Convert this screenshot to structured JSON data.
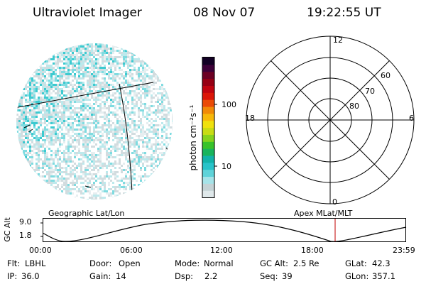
{
  "header": {
    "instrument": "Ultraviolet Imager",
    "date": "08 Nov 07",
    "time": "19:22:55 UT"
  },
  "left_panel": {
    "caption": "Geographic Lat/Lon"
  },
  "right_panel": {
    "caption": "Apex MLat/MLT",
    "mlt_labels": [
      "12",
      "18",
      "6",
      "0"
    ],
    "mlat_labels": [
      "60",
      "70",
      "80"
    ]
  },
  "colorbar": {
    "unit_label": "photon cm⁻²s⁻¹",
    "tick_labels": [
      "100",
      "10"
    ],
    "colors": [
      "#dfe8ea",
      "#c4d2d5",
      "#a6e3e8",
      "#5fd3d9",
      "#28c3c9",
      "#12b3a9",
      "#19b45c",
      "#38c22a",
      "#86d31d",
      "#c8dc14",
      "#efe10e",
      "#f7b80a",
      "#f18a08",
      "#ea4b07",
      "#db1608",
      "#c00410",
      "#960014",
      "#6c0024",
      "#3d0038",
      "#120024"
    ]
  },
  "timeline": {
    "axis_title": "GC Alt",
    "y_ticks": [
      "9.0",
      "1.8"
    ],
    "x_ticks": [
      "00:00",
      "06:00",
      "12:00",
      "18:00",
      "23:59"
    ]
  },
  "footer": {
    "row1": [
      {
        "label": "Flt:",
        "value": "LBHL"
      },
      {
        "label": "Door:",
        "value": "Open"
      },
      {
        "label": "Mode:",
        "value": "Normal"
      },
      {
        "label": "GC Alt:",
        "value": "2.5 Re"
      },
      {
        "label": "GLat:",
        "value": "42.3"
      }
    ],
    "row2": [
      {
        "label": "IP:",
        "value": "36.0"
      },
      {
        "label": "Gain:",
        "value": "14"
      },
      {
        "label": "Dsp:",
        "value": "2.2"
      },
      {
        "label": "Seq:",
        "value": "39"
      },
      {
        "label": "GLon:",
        "value": "357.1"
      }
    ]
  }
}
